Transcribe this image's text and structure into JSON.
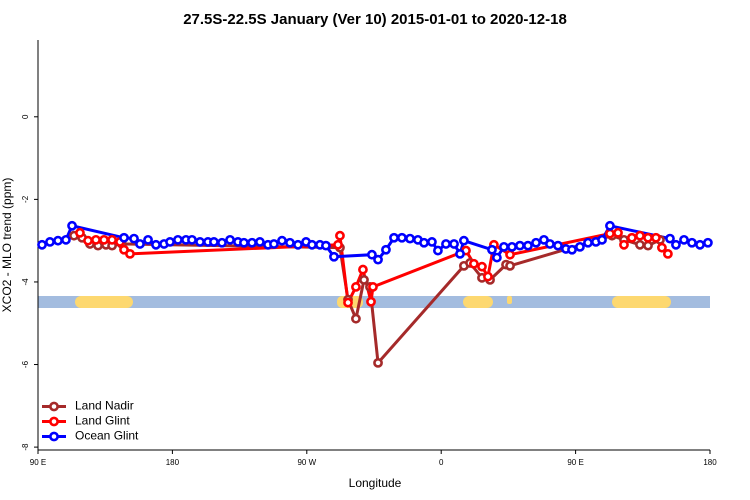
{
  "chart_data": {
    "type": "line",
    "title": "27.5S-22.5S January (Ver 10)   2015-01-01 to 2020-12-18",
    "x_label": "Longitude",
    "y_label": "XCO2 - MLO trend (ppm)",
    "xlim": [
      90,
      540
    ],
    "ylim": [
      -8.07,
      1.86
    ],
    "xticks": [
      {
        "value": 90,
        "label": "90 E"
      },
      {
        "value": 180,
        "label": "180"
      },
      {
        "value": 270,
        "label": "90 W"
      },
      {
        "value": 360,
        "label": "0"
      },
      {
        "value": 450,
        "label": "90 E"
      },
      {
        "value": 540,
        "label": "180"
      }
    ],
    "yticks": [
      0,
      -2,
      -4,
      -6,
      -8
    ],
    "legend": "bottomleft",
    "series": [
      {
        "name": "Land Nadir",
        "color": "#a52a2a",
        "x": [
          114.1,
          119.5,
          124.8,
          130.2,
          135.5,
          139.6,
          146.2,
          292.2,
          297.6,
          302.9,
          308.3,
          312.3,
          317.7,
          375.2,
          379.3,
          387.3,
          392.7,
          403.4,
          406.1,
          474.4,
          482.4,
          493.1,
          498.5,
          506.5
        ],
        "values": [
          -2.88,
          -2.93,
          -3.08,
          -3.12,
          -3.1,
          -3.12,
          -3.08,
          -3.17,
          -4.43,
          -4.89,
          -3.95,
          -4.12,
          -5.96,
          -3.61,
          -3.54,
          -3.9,
          -3.95,
          -3.58,
          -3.61,
          -2.88,
          -2.98,
          -3.1,
          -3.12,
          -2.98
        ]
      },
      {
        "name": "Land Glint",
        "color": "#ff0000",
        "x": [
          118.1,
          123.5,
          128.8,
          134.2,
          139.6,
          144.9,
          147.6,
          151.6,
          290.9,
          292.2,
          297.6,
          302.9,
          307.6,
          313.0,
          314.3,
          376.6,
          381.9,
          387.3,
          391.3,
          395.3,
          406.1,
          473.0,
          478.4,
          482.4,
          487.7,
          493.1,
          498.5,
          503.8,
          507.8,
          511.8
        ],
        "values": [
          -2.81,
          -3.0,
          -2.98,
          -2.98,
          -2.98,
          -3.03,
          -3.22,
          -3.32,
          -3.1,
          -2.88,
          -4.5,
          -4.12,
          -3.7,
          -4.48,
          -4.12,
          -3.24,
          -3.56,
          -3.63,
          -3.87,
          -3.1,
          -3.34,
          -2.83,
          -2.81,
          -3.1,
          -2.93,
          -2.88,
          -2.93,
          -2.93,
          -3.17,
          -3.32
        ]
      },
      {
        "name": "Ocean Glint",
        "color": "#0000ff",
        "x": [
          92.7,
          98.0,
          103.4,
          108.7,
          112.8,
          147.6,
          154.3,
          158.3,
          163.7,
          169.0,
          174.4,
          178.4,
          183.7,
          189.1,
          193.1,
          198.5,
          203.8,
          207.8,
          213.2,
          218.6,
          223.9,
          227.9,
          233.3,
          238.6,
          244.0,
          248.0,
          253.4,
          258.7,
          264.1,
          269.5,
          273.5,
          278.8,
          282.8,
          288.2,
          313.6,
          317.7,
          323.0,
          328.4,
          333.7,
          339.1,
          344.4,
          348.5,
          353.8,
          357.8,
          363.2,
          368.6,
          372.6,
          375.2,
          394.0,
          397.3,
          402.0,
          407.4,
          412.7,
          418.1,
          423.5,
          428.8,
          432.8,
          438.2,
          443.5,
          447.6,
          452.9,
          458.3,
          463.6,
          467.7,
          473.0,
          513.2,
          517.2,
          522.6,
          527.9,
          533.3,
          538.6
        ],
        "values": [
          -3.1,
          -3.03,
          -3.0,
          -2.98,
          -2.64,
          -2.93,
          -2.95,
          -3.08,
          -2.98,
          -3.1,
          -3.08,
          -3.03,
          -2.98,
          -2.98,
          -2.98,
          -3.03,
          -3.03,
          -3.03,
          -3.05,
          -2.98,
          -3.03,
          -3.05,
          -3.05,
          -3.03,
          -3.1,
          -3.08,
          -3.0,
          -3.05,
          -3.1,
          -3.03,
          -3.1,
          -3.1,
          -3.12,
          -3.39,
          -3.34,
          -3.46,
          -3.22,
          -2.93,
          -2.93,
          -2.95,
          -2.98,
          -3.05,
          -3.03,
          -3.24,
          -3.08,
          -3.08,
          -3.32,
          -3.0,
          -3.22,
          -3.41,
          -3.15,
          -3.15,
          -3.12,
          -3.12,
          -3.05,
          -2.98,
          -3.08,
          -3.12,
          -3.2,
          -3.22,
          -3.15,
          -3.05,
          -3.03,
          -2.98,
          -2.64,
          -2.95,
          -3.1,
          -2.98,
          -3.05,
          -3.1,
          -3.05
        ]
      }
    ]
  }
}
